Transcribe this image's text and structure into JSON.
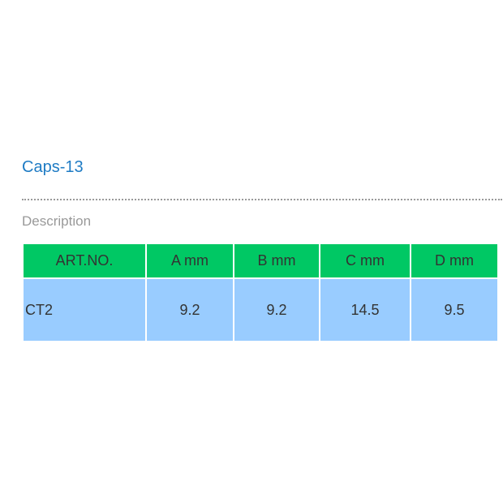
{
  "title": "Caps-13",
  "description_label": "Description",
  "table": {
    "headers": [
      "ART.NO.",
      "A mm",
      "B mm",
      "C mm",
      "D mm"
    ],
    "rows": [
      [
        "CT2",
        "9.2",
        "9.2",
        "14.5",
        "9.5"
      ]
    ]
  },
  "colors": {
    "title": "#1e7bc4",
    "header_bg": "#00c864",
    "row_bg": "#99ccff"
  }
}
